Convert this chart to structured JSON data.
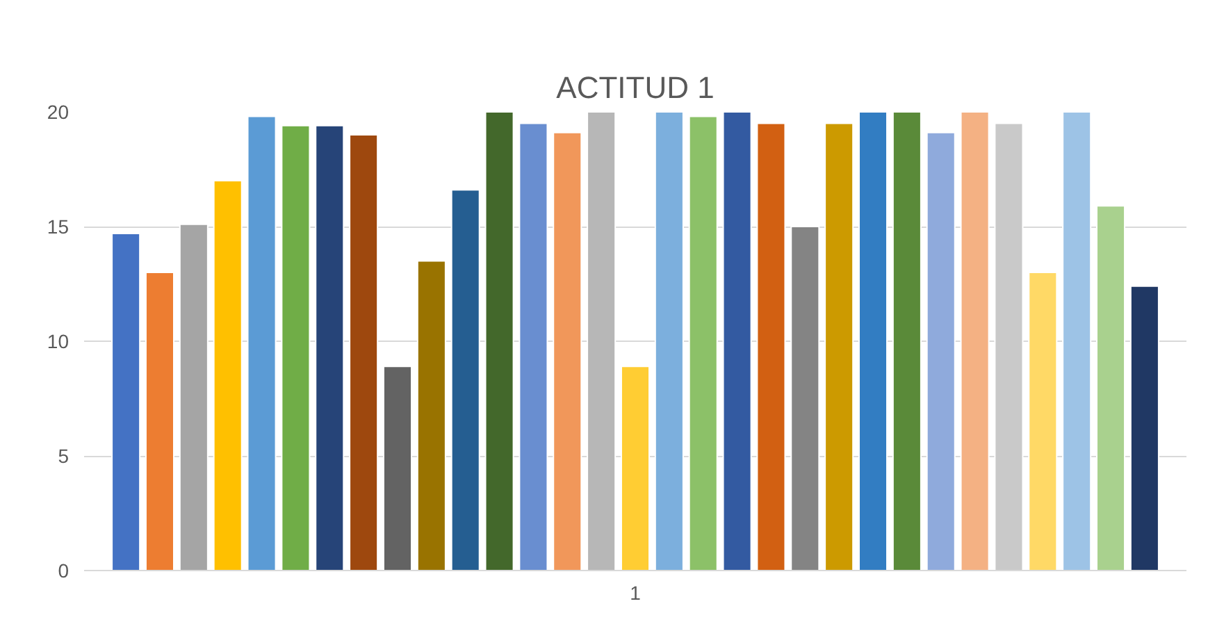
{
  "chart_data": {
    "type": "bar",
    "title": "ACTITUD 1",
    "categories": [
      "1"
    ],
    "ylim": [
      0,
      20
    ],
    "yticks": [
      0,
      5,
      10,
      15,
      20
    ],
    "grid": "y",
    "series": [
      {
        "color": "#4472c4",
        "values": [
          14.7
        ]
      },
      {
        "color": "#ed7d31",
        "values": [
          13.0
        ]
      },
      {
        "color": "#a5a5a5",
        "values": [
          15.1
        ]
      },
      {
        "color": "#ffc000",
        "values": [
          17.0
        ]
      },
      {
        "color": "#5b9bd5",
        "values": [
          19.8
        ]
      },
      {
        "color": "#70ad47",
        "values": [
          19.4
        ]
      },
      {
        "color": "#264478",
        "values": [
          19.4
        ]
      },
      {
        "color": "#9e480e",
        "values": [
          19.0
        ]
      },
      {
        "color": "#636363",
        "values": [
          8.9
        ]
      },
      {
        "color": "#997300",
        "values": [
          13.5
        ]
      },
      {
        "color": "#255e91",
        "values": [
          16.6
        ]
      },
      {
        "color": "#43682b",
        "values": [
          20
        ]
      },
      {
        "color": "#698ed0",
        "values": [
          19.5
        ]
      },
      {
        "color": "#f1975a",
        "values": [
          19.1
        ]
      },
      {
        "color": "#b7b7b7",
        "values": [
          20
        ]
      },
      {
        "color": "#ffcd33",
        "values": [
          8.9
        ]
      },
      {
        "color": "#7cafdd",
        "values": [
          20
        ]
      },
      {
        "color": "#8cc168",
        "values": [
          19.8
        ]
      },
      {
        "color": "#335aa1",
        "values": [
          20
        ]
      },
      {
        "color": "#d26012",
        "values": [
          19.5
        ]
      },
      {
        "color": "#848484",
        "values": [
          15.0
        ]
      },
      {
        "color": "#cc9a00",
        "values": [
          19.5
        ]
      },
      {
        "color": "#327dc2",
        "values": [
          20
        ]
      },
      {
        "color": "#5a8a39",
        "values": [
          20
        ]
      },
      {
        "color": "#8faadc",
        "values": [
          19.1
        ]
      },
      {
        "color": "#f4b183",
        "values": [
          20
        ]
      },
      {
        "color": "#c9c9c9",
        "values": [
          19.5
        ]
      },
      {
        "color": "#ffd966",
        "values": [
          13.0
        ]
      },
      {
        "color": "#9dc3e6",
        "values": [
          20
        ]
      },
      {
        "color": "#a9d18e",
        "values": [
          15.9
        ]
      },
      {
        "color": "#203864",
        "values": [
          12.4
        ]
      }
    ]
  }
}
